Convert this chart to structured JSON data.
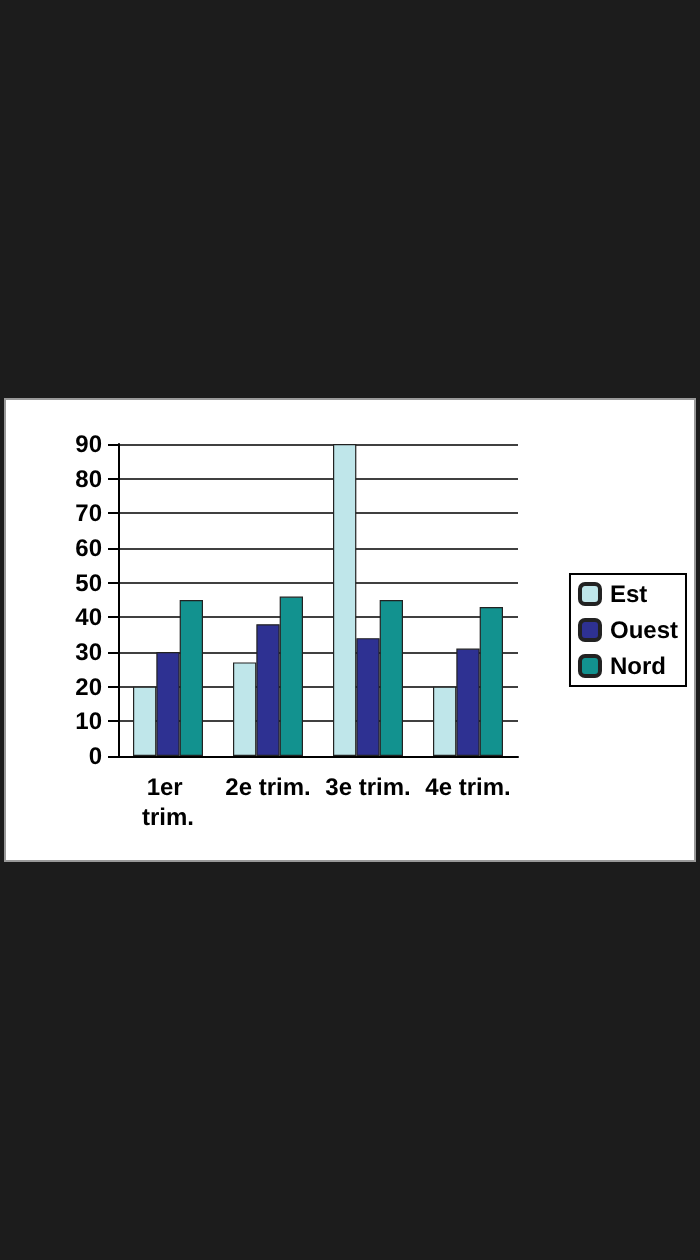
{
  "chart_data": {
    "type": "bar",
    "categories": [
      "1er trim.",
      "2e trim.",
      "3e trim.",
      "4e trim."
    ],
    "series": [
      {
        "name": "Est",
        "color": "#bfe6ea",
        "values": [
          20,
          27,
          90,
          20
        ]
      },
      {
        "name": "Ouest",
        "color": "#2e3192",
        "values": [
          30,
          38,
          34,
          31
        ]
      },
      {
        "name": "Nord",
        "color": "#12928f",
        "values": [
          45,
          46,
          45,
          43
        ]
      }
    ],
    "ylim": [
      0,
      90
    ],
    "yticks": [
      0,
      10,
      20,
      30,
      40,
      50,
      60,
      70,
      80,
      90
    ],
    "grid": "y",
    "legend": "right"
  }
}
